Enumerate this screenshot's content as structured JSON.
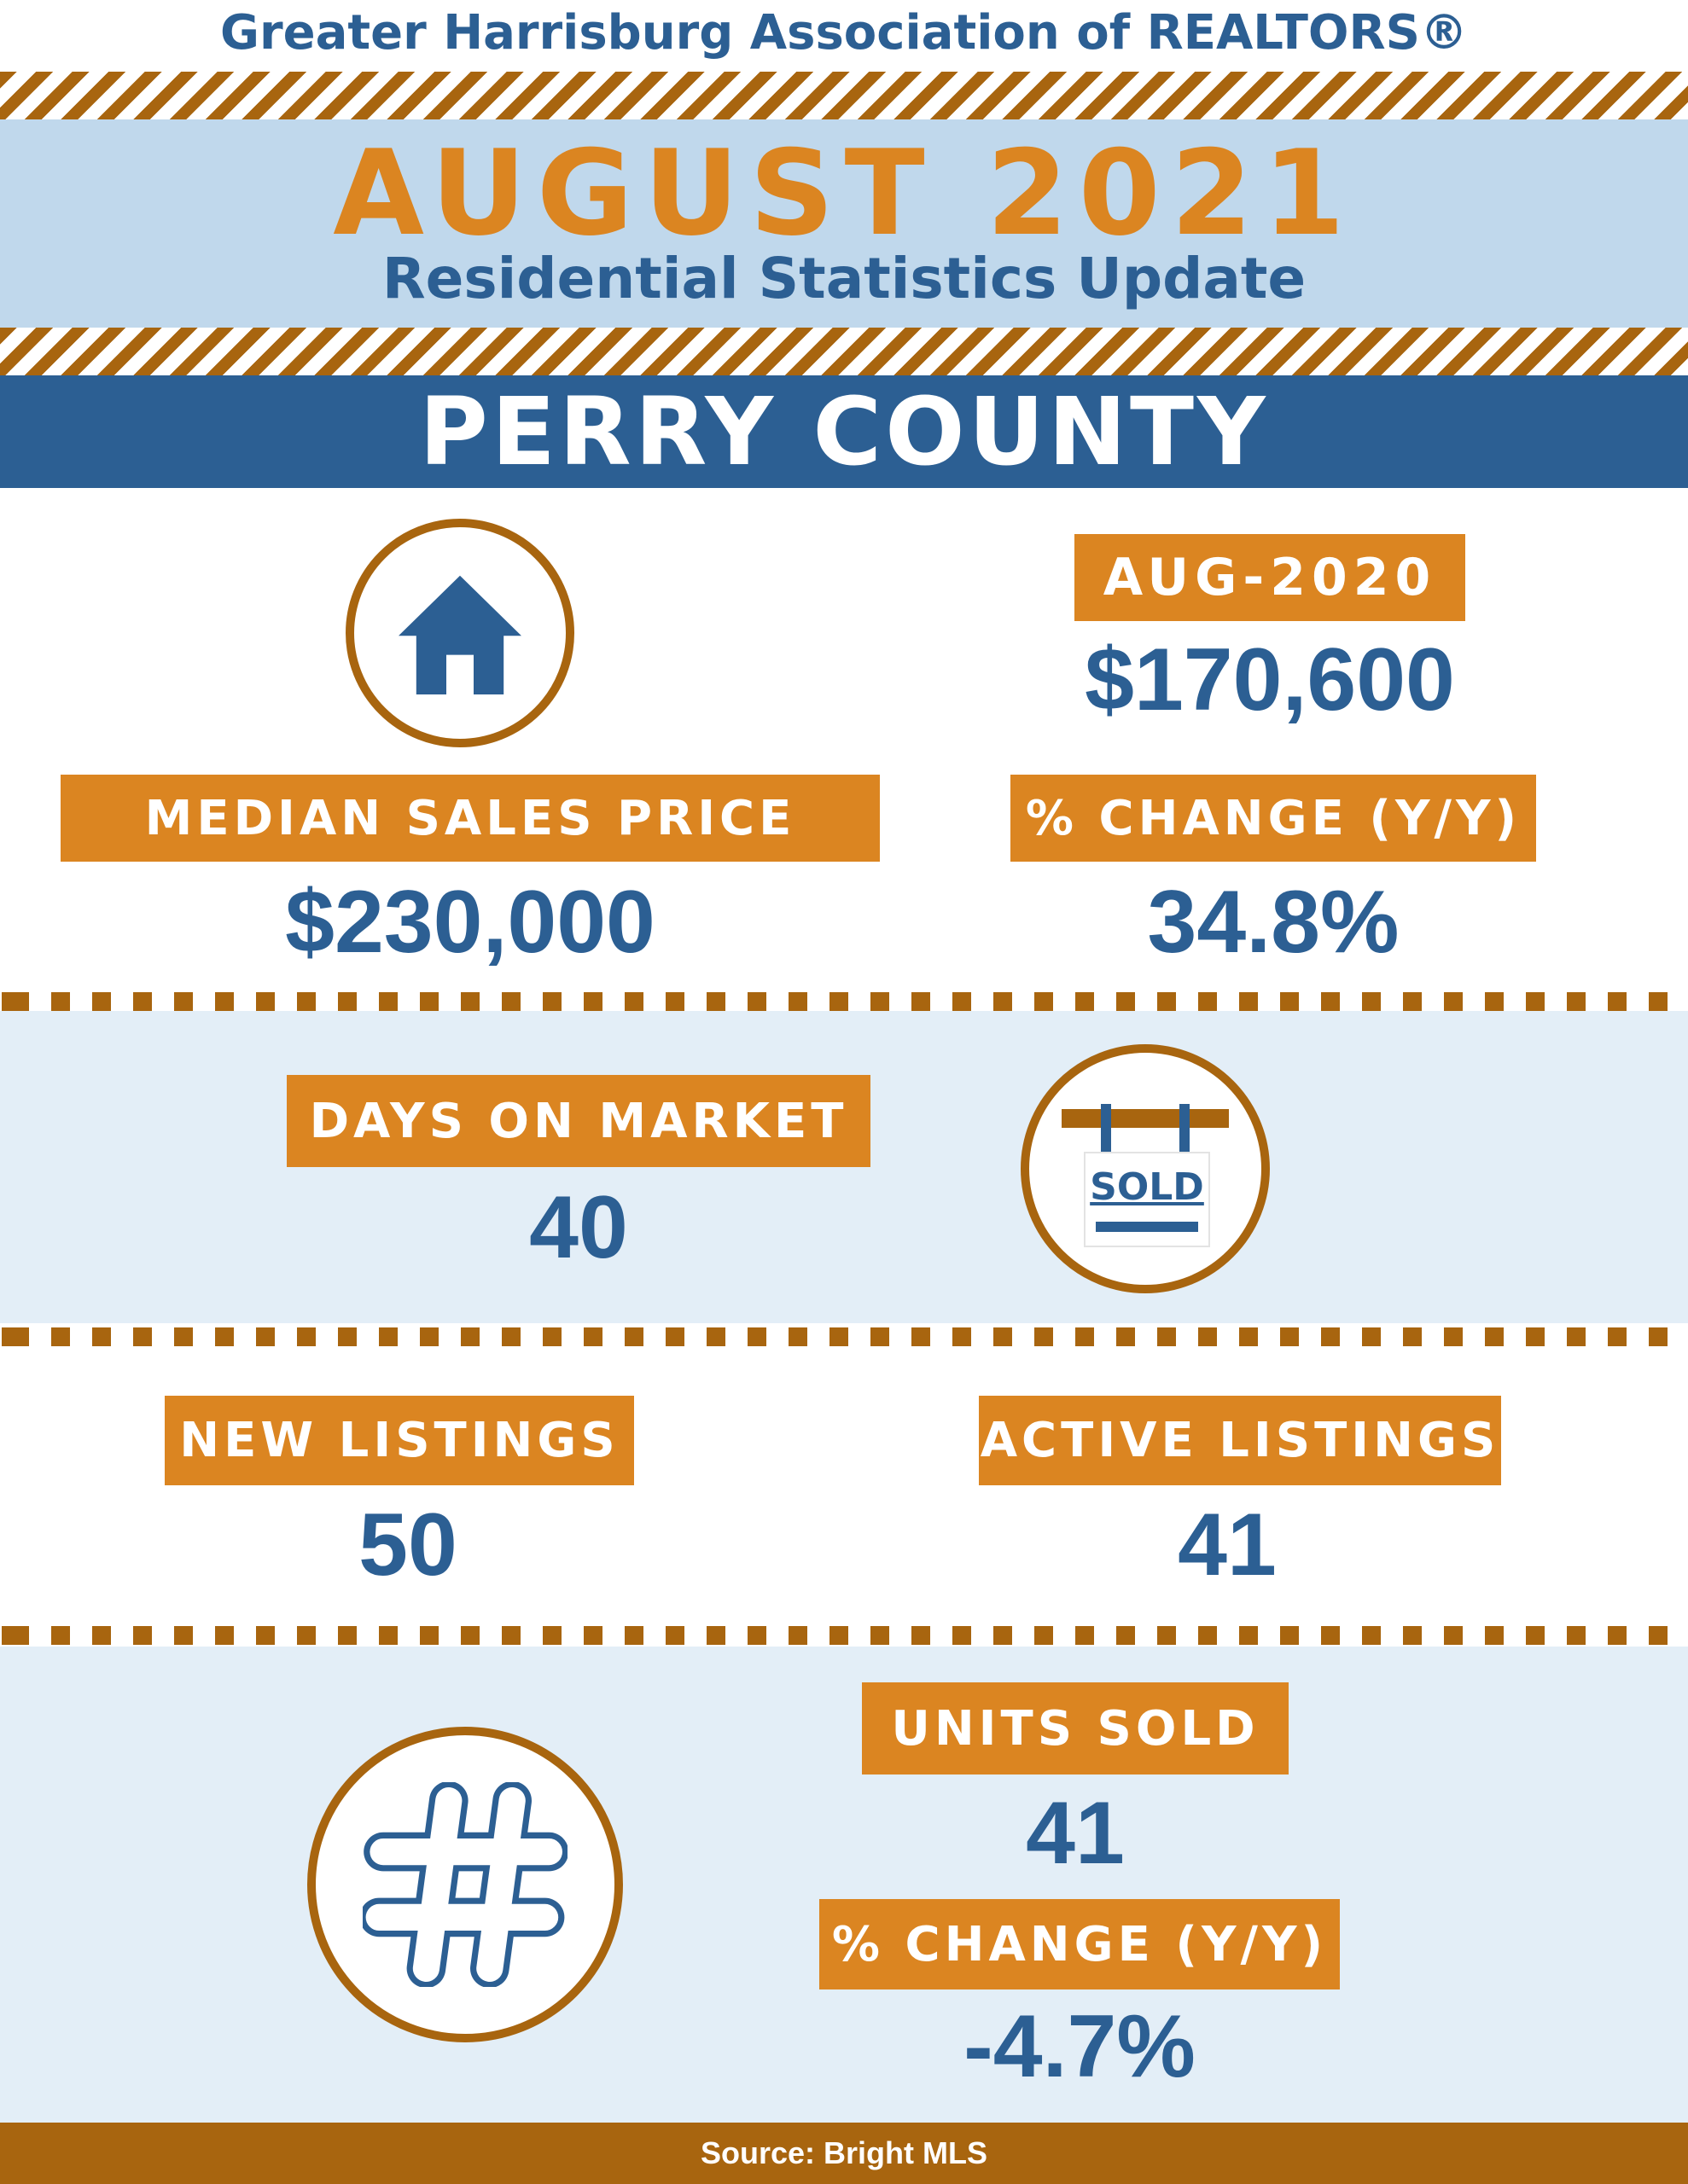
{
  "header": {
    "association": "Greater Harrisburg Association of REALTORS®",
    "month_year": "AUGUST 2021",
    "subtitle": "Residential Statistics Update",
    "county": "PERRY COUNTY"
  },
  "median_sales_price": {
    "label": "MEDIAN SALES PRICE",
    "value": "$230,000",
    "prior_label": "AUG-2020",
    "prior_value": "$170,600",
    "change_label": "% CHANGE (Y/Y)",
    "change_value": "34.8%"
  },
  "days_on_market": {
    "label": "DAYS ON MARKET",
    "value": "40",
    "sign_text": "SOLD"
  },
  "listings": {
    "new_label": "NEW LISTINGS",
    "new_value": "50",
    "active_label": "ACTIVE LISTINGS",
    "active_value": "41"
  },
  "units_sold": {
    "label": "UNITS SOLD",
    "value": "41",
    "change_label": "% CHANGE (Y/Y)",
    "change_value": "-4.7%"
  },
  "footer": {
    "source": "Source: Bright MLS"
  },
  "colors": {
    "blue": "#2c5f93",
    "orange": "#db8521",
    "brown": "#a8650f",
    "light_blue": "#c0d8ec",
    "pale_blue": "#e3eef7"
  },
  "icons": [
    "house-icon",
    "sold-sign-icon",
    "hashtag-icon"
  ]
}
